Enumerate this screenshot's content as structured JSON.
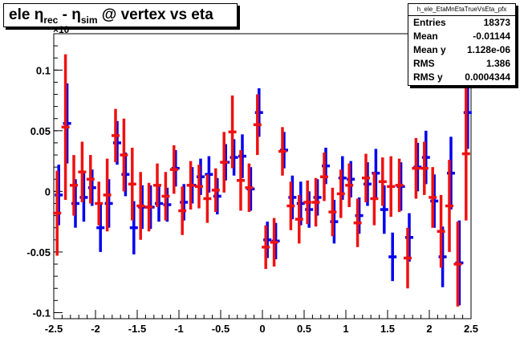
{
  "title": {
    "prefix": "ele η",
    "sub1": "rec",
    "mid": " - η",
    "sub2": "sim",
    "suffix": " @ vertex vs eta"
  },
  "stats": {
    "name": "h_ele_EtaMnEtaTrueVsEta_pfx",
    "rows": [
      {
        "label": "Entries",
        "value": "18373"
      },
      {
        "label": "Mean",
        "value": "-0.01144"
      },
      {
        "label": "Mean y",
        "value": "1.128e-06"
      },
      {
        "label": "RMS",
        "value": "1.386"
      },
      {
        "label": "RMS y",
        "value": "0.0004344"
      }
    ]
  },
  "exponent_label": "×10",
  "colors": {
    "series1": "#0000ee",
    "series2": "#ee1111",
    "axis": "#000000"
  },
  "chart_data": {
    "type": "scatter",
    "xlim": [
      -2.5,
      2.5
    ],
    "ylim": [
      -0.105,
      0.13
    ],
    "xticks": [
      "-2.5",
      "-2",
      "-1.5",
      "-1",
      "-0.5",
      "0",
      "0.5",
      "1",
      "1.5",
      "2",
      "2.5"
    ],
    "yticks": [
      "-0.1",
      "-0.05",
      "0",
      "0.05",
      "0.1"
    ],
    "xtick_values": [
      -2.5,
      -2,
      -1.5,
      -1,
      -0.5,
      0,
      0.5,
      1,
      1.5,
      2,
      2.5
    ],
    "ytick_values": [
      -0.1,
      -0.05,
      0,
      0.05,
      0.1
    ],
    "series": [
      {
        "x": [
          -2.45,
          -2.35,
          -2.25,
          -2.15,
          -2.05,
          -1.95,
          -1.85,
          -1.75,
          -1.65,
          -1.55,
          -1.45,
          -1.35,
          -1.25,
          -1.15,
          -1.05,
          -0.95,
          -0.85,
          -0.75,
          -0.65,
          -0.55,
          -0.45,
          -0.35,
          -0.25,
          -0.15,
          -0.05,
          0.05,
          0.15,
          0.25,
          0.35,
          0.45,
          0.55,
          0.65,
          0.75,
          0.85,
          0.95,
          1.05,
          1.15,
          1.25,
          1.35,
          1.45,
          1.55,
          1.65,
          1.75,
          1.85,
          1.95,
          2.05,
          2.15,
          2.25,
          2.35,
          2.45
        ],
        "y": [
          -0.003,
          0.056,
          -0.01,
          -0.005,
          0.003,
          -0.03,
          -0.01,
          0.04,
          0.014,
          -0.03,
          -0.013,
          -0.013,
          -0.01,
          -0.011,
          0.019,
          -0.009,
          0.005,
          0.012,
          0.014,
          -0.004,
          0.024,
          0.028,
          0.029,
          0.002,
          0.065,
          -0.04,
          -0.041,
          0.034,
          -0.005,
          -0.01,
          -0.015,
          -0.005,
          0.021,
          -0.025,
          0.011,
          0.01,
          -0.02,
          0.006,
          0.015,
          -0.015,
          -0.054,
          0.004,
          -0.038,
          0.02,
          0.028,
          -0.008,
          -0.054,
          0.015,
          -0.059,
          0.065
        ],
        "err": [
          0.025,
          0.033,
          0.02,
          0.02,
          0.015,
          0.02,
          0.02,
          0.018,
          0.018,
          0.022,
          0.018,
          0.018,
          0.015,
          0.014,
          0.015,
          0.015,
          0.015,
          0.015,
          0.015,
          0.015,
          0.015,
          0.015,
          0.018,
          0.018,
          0.02,
          0.015,
          0.015,
          0.015,
          0.018,
          0.018,
          0.015,
          0.015,
          0.015,
          0.018,
          0.018,
          0.015,
          0.015,
          0.018,
          0.02,
          0.02,
          0.02,
          0.02,
          0.02,
          0.02,
          0.022,
          0.022,
          0.025,
          0.03,
          0.035,
          0.03
        ]
      },
      {
        "x": [
          -2.45,
          -2.35,
          -2.25,
          -2.15,
          -2.05,
          -1.95,
          -1.85,
          -1.75,
          -1.65,
          -1.55,
          -1.45,
          -1.35,
          -1.25,
          -1.15,
          -1.05,
          -0.95,
          -0.85,
          -0.75,
          -0.65,
          -0.55,
          -0.45,
          -0.35,
          -0.25,
          -0.15,
          -0.05,
          0.05,
          0.15,
          0.25,
          0.35,
          0.45,
          0.55,
          0.65,
          0.75,
          0.85,
          0.95,
          1.05,
          1.15,
          1.25,
          1.35,
          1.45,
          1.55,
          1.65,
          1.75,
          1.85,
          1.95,
          2.05,
          2.15,
          2.25,
          2.35,
          2.45
        ],
        "y": [
          -0.018,
          0.053,
          0.005,
          0.016,
          0.01,
          -0.01,
          -0.003,
          0.046,
          0.03,
          0.006,
          -0.012,
          -0.013,
          0.005,
          -0.004,
          0.018,
          -0.016,
          0.005,
          0.004,
          -0.006,
          0.001,
          0.024,
          0.049,
          0.009,
          0.003,
          0.055,
          -0.046,
          -0.042,
          0.033,
          -0.012,
          -0.023,
          -0.009,
          -0.009,
          0.012,
          -0.017,
          -0.002,
          0.005,
          -0.026,
          0.011,
          -0.006,
          0.008,
          0.004,
          0.005,
          -0.055,
          0.019,
          0.019,
          -0.005,
          -0.033,
          -0.012,
          -0.06,
          0.031
        ],
        "err": [
          0.035,
          0.06,
          0.025,
          0.025,
          0.02,
          0.018,
          0.03,
          0.022,
          0.03,
          0.03,
          0.028,
          0.02,
          0.018,
          0.02,
          0.02,
          0.02,
          0.02,
          0.018,
          0.02,
          0.018,
          0.025,
          0.03,
          0.025,
          0.02,
          0.025,
          0.018,
          0.02,
          0.02,
          0.02,
          0.02,
          0.018,
          0.02,
          0.02,
          0.02,
          0.02,
          0.018,
          0.02,
          0.02,
          0.022,
          0.02,
          0.025,
          0.022,
          0.025,
          0.025,
          0.022,
          0.025,
          0.03,
          0.038,
          0.035,
          0.055
        ]
      }
    ]
  }
}
